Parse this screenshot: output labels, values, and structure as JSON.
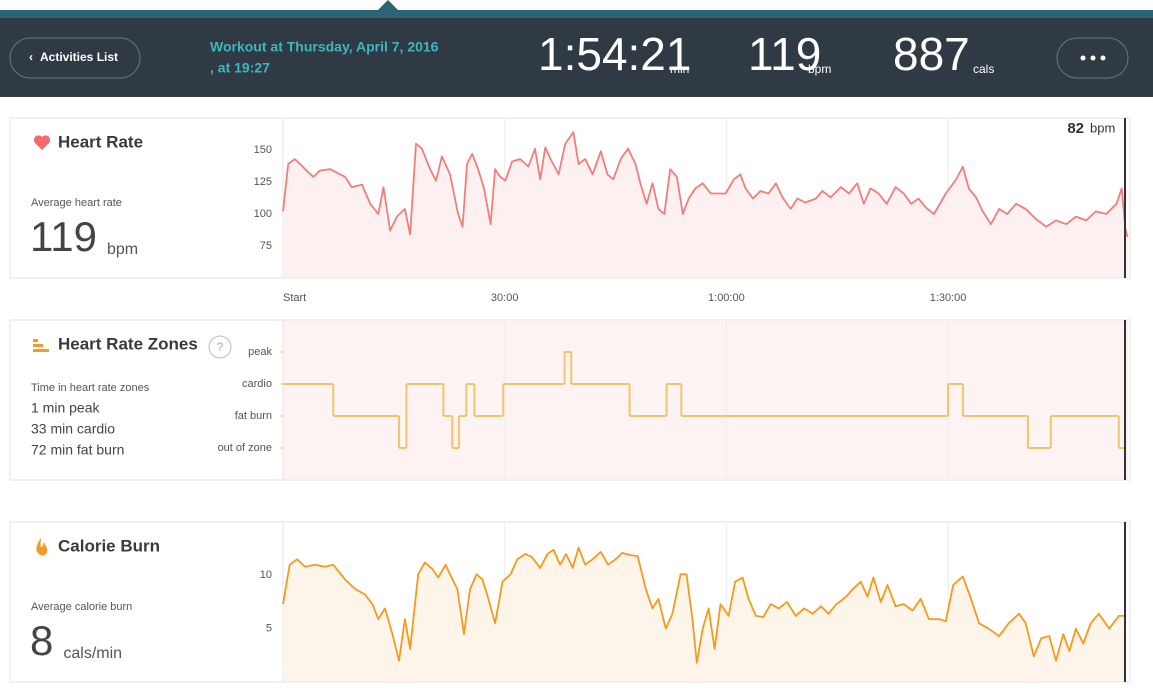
{
  "header": {
    "back": "Activities List",
    "title_line1": "Workout at Thursday, April 7, 2016",
    "title_line2": ", at 19:27",
    "stats": [
      {
        "value": "1:54:21",
        "unit": "min"
      },
      {
        "value": "119",
        "unit": "bpm"
      },
      {
        "value": "887",
        "unit": "cals"
      }
    ]
  },
  "chart_data": [
    {
      "type": "line",
      "title": "Heart Rate",
      "subtitle": "Average heart rate",
      "summary_value": 119,
      "summary_unit": "bpm",
      "cursor_value": 82,
      "cursor_unit": "bpm",
      "color": "#f07f7c",
      "fill": "#fdf0f0",
      "xlim": [
        0,
        114.35
      ],
      "xticks": [
        {
          "value": 0,
          "label": "Start"
        },
        {
          "value": 30,
          "label": "30:00"
        },
        {
          "value": 60,
          "label": "1:00:00"
        },
        {
          "value": 90,
          "label": "1:30:00"
        }
      ],
      "ylim": [
        50,
        175
      ],
      "yticks": [
        75,
        100,
        125,
        150
      ],
      "x": [
        0,
        0.7,
        1.6,
        3.0,
        4.1,
        5.0,
        6.4,
        8.4,
        9.3,
        10.7,
        11.8,
        12.9,
        13.6,
        14.5,
        15.4,
        16.5,
        17.2,
        18.0,
        18.8,
        19.9,
        20.7,
        21.5,
        22.6,
        23.7,
        24.3,
        24.9,
        25.6,
        26.4,
        27.2,
        28.1,
        28.7,
        29.4,
        30.1,
        31.0,
        32.1,
        33.2,
        34.1,
        34.8,
        35.5,
        36.2,
        37.3,
        38.2,
        39.3,
        40.0,
        40.9,
        41.9,
        43.0,
        43.9,
        44.7,
        45.7,
        46.7,
        47.7,
        48.4,
        49.2,
        50.0,
        50.8,
        51.6,
        52.4,
        53.3,
        54.1,
        54.9,
        55.8,
        56.8,
        57.9,
        59.9,
        61.0,
        61.9,
        62.6,
        63.6,
        64.6,
        65.7,
        66.7,
        67.6,
        68.7,
        69.6,
        70.7,
        72.1,
        73.0,
        74.1,
        75.5,
        76.6,
        77.7,
        78.6,
        79.5,
        80.6,
        81.7,
        82.9,
        84.0,
        85.0,
        86.0,
        87.0,
        88.1,
        89.7,
        91.1,
        92.0,
        92.8,
        93.8,
        94.7,
        95.8,
        96.9,
        98.0,
        99.2,
        100.5,
        101.9,
        103.3,
        104.6,
        106.0,
        107.3,
        108.7,
        110.0,
        111.4,
        112.8,
        113.5,
        114.0,
        114.3
      ],
      "values": [
        102,
        139,
        143,
        135,
        129,
        134,
        135,
        129,
        121,
        123,
        108,
        100,
        121,
        87,
        98,
        104,
        84,
        155,
        151,
        135,
        126,
        145,
        131,
        100,
        90,
        139,
        147,
        135,
        120,
        92,
        135,
        129,
        126,
        141,
        143,
        137,
        151,
        127,
        152,
        143,
        131,
        155,
        164,
        139,
        143,
        131,
        149,
        131,
        127,
        143,
        151,
        139,
        123,
        108,
        124,
        104,
        100,
        135,
        129,
        100,
        112,
        120,
        124,
        116,
        116,
        127,
        131,
        120,
        112,
        118,
        116,
        124,
        113,
        104,
        112,
        109,
        112,
        118,
        113,
        121,
        116,
        124,
        108,
        120,
        116,
        108,
        121,
        116,
        108,
        112,
        105,
        100,
        116,
        127,
        137,
        120,
        113,
        102,
        92,
        104,
        100,
        108,
        104,
        96,
        90,
        95,
        92,
        98,
        95,
        102,
        100,
        108,
        120,
        88,
        82
      ]
    },
    {
      "type": "step",
      "title": "Heart Rate Zones",
      "help": "?",
      "subtitle": "Time in heart rate zones",
      "summary": [
        "1 min peak",
        "33 min cardio",
        "72 min fat burn"
      ],
      "color": "#f2c46d",
      "fill": "#fef3f3",
      "xlim": [
        0,
        114.35
      ],
      "ylim": [
        -1,
        4
      ],
      "yticks": [
        {
          "value": 3,
          "label": "peak"
        },
        {
          "value": 2,
          "label": "cardio"
        },
        {
          "value": 1,
          "label": "fat burn"
        },
        {
          "value": 0,
          "label": "out of zone"
        }
      ],
      "x": [
        0,
        6.8,
        15.7,
        16.7,
        21.7,
        22.9,
        23.8,
        24.8,
        25.9,
        29.8,
        38.1,
        39.0,
        46.9,
        51.9,
        53.9,
        90.0,
        92.0,
        100.8,
        103.9,
        113.1
      ],
      "values": [
        2,
        1,
        0,
        2,
        1,
        0,
        1,
        2,
        1,
        2,
        3,
        2,
        1,
        2,
        1,
        2,
        1,
        0,
        1,
        0
      ]
    },
    {
      "type": "line",
      "title": "Calorie Burn",
      "subtitle": "Average calorie burn",
      "summary_value": 8,
      "summary_unit": "cals/min",
      "color": "#f59a1d",
      "fill": "#fef5ea",
      "xlim": [
        0,
        114.35
      ],
      "ylim": [
        0,
        15
      ],
      "yticks": [
        5,
        10
      ],
      "x": [
        0,
        0.9,
        1.9,
        3.0,
        4.3,
        5.7,
        6.8,
        8.4,
        9.8,
        11.1,
        12.1,
        12.9,
        13.8,
        14.8,
        15.7,
        16.5,
        17.2,
        18.3,
        19.2,
        20.2,
        21.0,
        22.0,
        22.6,
        23.6,
        24.5,
        25.3,
        26.2,
        27.0,
        27.8,
        28.7,
        29.7,
        30.8,
        31.7,
        32.8,
        33.7,
        34.8,
        35.8,
        36.6,
        37.5,
        38.3,
        39.2,
        40.0,
        40.9,
        41.9,
        43.0,
        44.0,
        45.0,
        45.9,
        47.0,
        48.0,
        49.1,
        50.0,
        50.8,
        51.8,
        52.7,
        53.8,
        54.6,
        55.4,
        56.0,
        56.8,
        57.6,
        58.4,
        59.2,
        60.3,
        61.2,
        62.2,
        63.0,
        64.0,
        65.0,
        66.0,
        67.1,
        68.2,
        69.4,
        70.5,
        71.7,
        72.8,
        73.8,
        74.9,
        76.2,
        77.1,
        78.2,
        79.1,
        79.9,
        80.9,
        81.8,
        82.9,
        84.0,
        85.2,
        86.3,
        87.4,
        88.8,
        89.7,
        90.7,
        92.0,
        93.1,
        94.2,
        95.5,
        96.9,
        98.2,
        99.6,
        100.5,
        101.6,
        102.6,
        103.7,
        104.6,
        105.6,
        106.4,
        107.3,
        108.3,
        109.3,
        110.4,
        111.8,
        113.1,
        114.1
      ],
      "values": [
        7.3,
        11,
        11.5,
        10.8,
        11,
        10.8,
        11,
        9.6,
        8.7,
        8.2,
        7.3,
        5.9,
        6.9,
        4.5,
        2,
        5.9,
        3.1,
        10.1,
        11.2,
        10.6,
        9.8,
        11,
        10.1,
        8.7,
        4.5,
        8.7,
        10.1,
        9.6,
        7.8,
        5.5,
        9.4,
        10.1,
        11.5,
        12,
        11.7,
        10.7,
        12,
        12.4,
        11,
        12,
        10.7,
        12.6,
        11,
        11.5,
        12.2,
        11,
        11.5,
        12.1,
        11.9,
        11.8,
        8.7,
        6.9,
        7.8,
        5,
        6.4,
        10.1,
        10.1,
        5.9,
        1.8,
        5,
        6.9,
        3.1,
        7.3,
        6.2,
        9.4,
        9.8,
        7.8,
        6.2,
        6.1,
        7.3,
        6.9,
        7.5,
        6.2,
        6.9,
        6.4,
        7.1,
        6.4,
        7.3,
        8,
        8.7,
        9.4,
        8,
        9.8,
        7.5,
        9.1,
        7.1,
        7.3,
        6.7,
        7.8,
        5.9,
        5.9,
        5.7,
        9.1,
        9.9,
        7.8,
        5.5,
        5,
        4.3,
        5.5,
        6.4,
        5.5,
        2.4,
        4.1,
        4.3,
        2,
        4.5,
        2.9,
        5,
        3.6,
        5.5,
        6.4,
        5,
        6.2,
        6.2
      ]
    }
  ]
}
